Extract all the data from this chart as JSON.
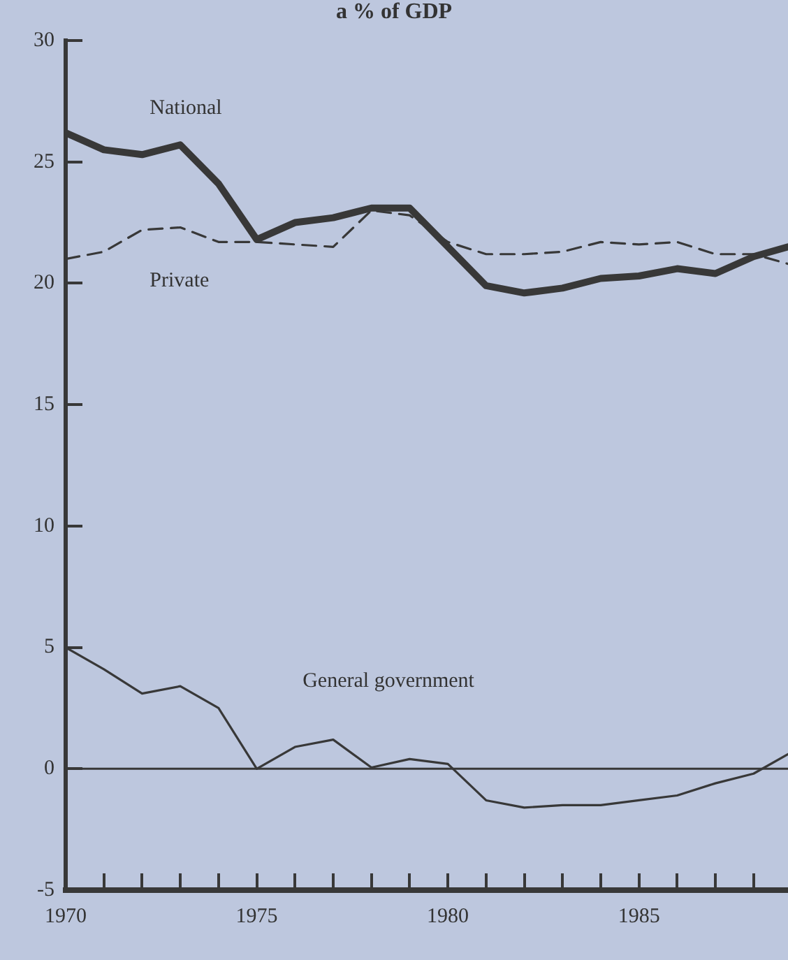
{
  "chart_data": {
    "type": "line",
    "title": "a % of GDP",
    "x": [
      1970,
      1971,
      1972,
      1973,
      1974,
      1975,
      1976,
      1977,
      1978,
      1979,
      1980,
      1981,
      1982,
      1983,
      1984,
      1985,
      1986,
      1987,
      1988,
      1988.9
    ],
    "series": [
      {
        "name": "National",
        "color": "#383838",
        "line_style": "solid",
        "values": [
          26.2,
          25.5,
          25.3,
          25.7,
          24.1,
          21.8,
          22.5,
          22.7,
          23.1,
          23.1,
          21.5,
          19.9,
          19.6,
          19.8,
          20.2,
          20.3,
          20.6,
          20.4,
          21.1,
          21.5
        ]
      },
      {
        "name": "Private",
        "color": "#383838",
        "line_style": "dashed",
        "values": [
          21.0,
          21.3,
          22.2,
          22.3,
          21.7,
          21.7,
          21.6,
          21.5,
          23.0,
          22.8,
          21.7,
          21.2,
          21.2,
          21.3,
          21.7,
          21.6,
          21.7,
          21.2,
          21.2,
          20.8
        ]
      },
      {
        "name": "General government",
        "color": "#383838",
        "line_style": "solid",
        "values": [
          5.0,
          4.1,
          3.1,
          3.4,
          2.5,
          0,
          0.9,
          1.2,
          0.05,
          0.4,
          0.2,
          -1.3,
          -1.6,
          -1.5,
          -1.5,
          -1.3,
          -1.1,
          -0.6,
          -0.2,
          0.6
        ]
      }
    ],
    "xlim": [
      1970,
      1988.9
    ],
    "xticks": [
      1970,
      {
        "value": 1971,
        "label": null
      },
      {
        "value": 1972,
        "label": null
      },
      {
        "value": 1973,
        "label": null
      },
      {
        "value": 1974,
        "label": null
      },
      1975,
      {
        "value": 1976,
        "label": null
      },
      {
        "value": 1977,
        "label": null
      },
      {
        "value": 1978,
        "label": null
      },
      {
        "value": 1979,
        "label": null
      },
      1980,
      {
        "value": 1981,
        "label": null
      },
      {
        "value": 1982,
        "label": null
      },
      {
        "value": 1983,
        "label": null
      },
      {
        "value": 1984,
        "label": null
      },
      1985,
      {
        "value": 1986,
        "label": null
      },
      {
        "value": 1987,
        "label": null
      },
      {
        "value": 1988,
        "label": null
      }
    ],
    "ylim": [
      -5,
      30
    ],
    "yticks": [
      -5,
      0,
      5,
      10,
      15,
      20,
      25,
      30
    ],
    "ref_lines": [
      {
        "axis": "y",
        "value": 0,
        "color": "#383838"
      }
    ],
    "grid": false,
    "legend": false,
    "marker": "none"
  }
}
